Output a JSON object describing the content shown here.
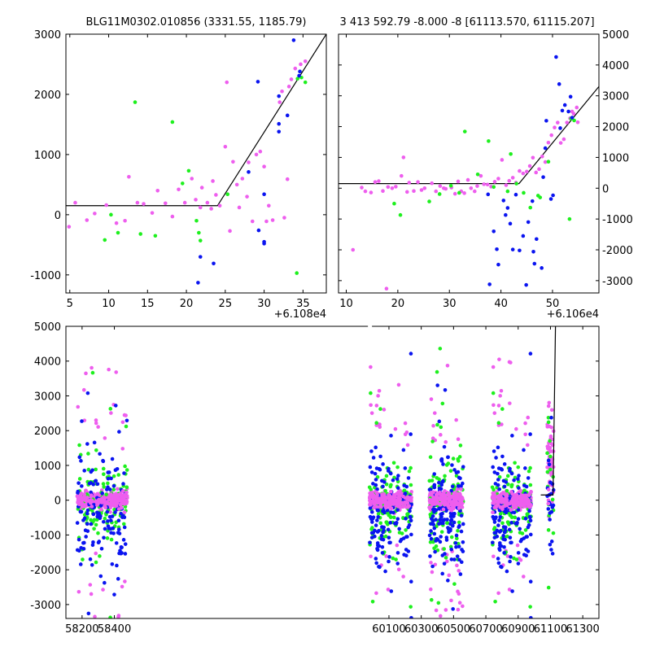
{
  "chart_data": [
    {
      "type": "scatter",
      "title": "BLG11M0302.010856 (3331.55, 1185.79)",
      "xlabel": "",
      "ylabel": "",
      "x_offset_label": "+6.108e4",
      "xlim": [
        4.5,
        38
      ],
      "ylim": [
        -1300,
        3000
      ],
      "xticks": [
        5,
        10,
        15,
        20,
        25,
        30,
        35
      ],
      "yticks": [
        -1000,
        0,
        1000,
        2000,
        3000
      ],
      "y_axis_side": "left",
      "model_line": [
        [
          4.5,
          150
        ],
        [
          24,
          150
        ],
        [
          38,
          3000
        ]
      ],
      "colors": {
        "blue": "#0a14f0",
        "green": "#1ef01e",
        "magenta": "#ee5eee",
        "line": "#000000"
      },
      "series": [
        {
          "name": "blue",
          "points": [
            [
              21.8,
              -700
            ],
            [
              21.5,
              -1130
            ],
            [
              23.5,
              -810
            ],
            [
              30,
              -450
            ],
            [
              29.3,
              -260
            ],
            [
              30,
              -480
            ],
            [
              30,
              340
            ],
            [
              31.9,
              1970
            ],
            [
              31.9,
              1380
            ],
            [
              31.9,
              1510
            ],
            [
              33.8,
              2900
            ],
            [
              34.6,
              2380
            ],
            [
              29.2,
              2210
            ],
            [
              28,
              710
            ],
            [
              33,
              1650
            ],
            [
              34.5,
              2310
            ]
          ]
        },
        {
          "name": "green",
          "points": [
            [
              9.5,
              -420
            ],
            [
              10.3,
              0
            ],
            [
              11.2,
              -300
            ],
            [
              13.4,
              1870
            ],
            [
              14.1,
              -320
            ],
            [
              16,
              -350
            ],
            [
              18.2,
              1540
            ],
            [
              19.5,
              520
            ],
            [
              20.3,
              730
            ],
            [
              21.3,
              -100
            ],
            [
              21.8,
              -430
            ],
            [
              21.6,
              -300
            ],
            [
              34.2,
              -970
            ],
            [
              35.3,
              2200
            ],
            [
              25.3,
              340
            ],
            [
              34.3,
              2260
            ],
            [
              34.8,
              2280
            ]
          ]
        },
        {
          "name": "magenta",
          "points": [
            [
              4.9,
              -200
            ],
            [
              5.7,
              200
            ],
            [
              7.2,
              -90
            ],
            [
              8.2,
              20
            ],
            [
              9.7,
              160
            ],
            [
              11,
              -140
            ],
            [
              12.1,
              -100
            ],
            [
              12.6,
              630
            ],
            [
              13.7,
              200
            ],
            [
              14.5,
              180
            ],
            [
              15.6,
              30
            ],
            [
              16.3,
              400
            ],
            [
              17.3,
              190
            ],
            [
              18.2,
              -30
            ],
            [
              19,
              420
            ],
            [
              19.8,
              200
            ],
            [
              20.7,
              600
            ],
            [
              21.2,
              250
            ],
            [
              21.8,
              120
            ],
            [
              22,
              450
            ],
            [
              22.7,
              200
            ],
            [
              23.2,
              100
            ],
            [
              23.8,
              330
            ],
            [
              24.3,
              150
            ],
            [
              25,
              1130
            ],
            [
              25.2,
              2200
            ],
            [
              26,
              880
            ],
            [
              26.5,
              500
            ],
            [
              27.2,
              600
            ],
            [
              27.8,
              300
            ],
            [
              28,
              870
            ],
            [
              28.5,
              -110
            ],
            [
              29,
              1000
            ],
            [
              29.5,
              1050
            ],
            [
              30,
              800
            ],
            [
              30.6,
              150
            ],
            [
              31.1,
              -90
            ],
            [
              32,
              1870
            ],
            [
              32.3,
              2050
            ],
            [
              32.6,
              -50
            ],
            [
              33.2,
              2130
            ],
            [
              33.5,
              2250
            ],
            [
              34,
              2430
            ],
            [
              34.7,
              2500
            ],
            [
              35.3,
              2550
            ],
            [
              33,
              590
            ],
            [
              26.8,
              120
            ],
            [
              23.4,
              560
            ],
            [
              25.6,
              -270
            ],
            [
              30.3,
              -110
            ]
          ]
        }
      ]
    },
    {
      "type": "scatter",
      "title": "3 413 592.79 -8.000 -8 [61113.570, 61115.207]",
      "xlabel": "",
      "ylabel": "",
      "x_offset_label": "+6.106e4",
      "xlim": [
        8.5,
        59
      ],
      "ylim": [
        -3400,
        5000
      ],
      "xticks": [
        10,
        20,
        30,
        40,
        50
      ],
      "yticks": [
        -3000,
        -2000,
        -1000,
        0,
        1000,
        2000,
        3000,
        4000,
        5000
      ],
      "y_axis_side": "right",
      "model_line": [
        [
          8.5,
          150
        ],
        [
          43.5,
          150
        ],
        [
          59,
          3300
        ]
      ],
      "colors": {
        "blue": "#0a14f0",
        "green": "#1ef01e",
        "magenta": "#ee5eee",
        "line": "#000000"
      },
      "series": [
        {
          "name": "blue",
          "points": [
            [
              37.8,
              -3120
            ],
            [
              38.6,
              -1400
            ],
            [
              39.2,
              -1980
            ],
            [
              39.5,
              -2480
            ],
            [
              40.9,
              -870
            ],
            [
              41.3,
              -640
            ],
            [
              41.8,
              -1150
            ],
            [
              42.3,
              -1990
            ],
            [
              42.9,
              -210
            ],
            [
              43.6,
              -2020
            ],
            [
              44.3,
              -1550
            ],
            [
              44.9,
              -3140
            ],
            [
              45.3,
              -1100
            ],
            [
              46.3,
              -2060
            ],
            [
              46.5,
              -2450
            ],
            [
              46.9,
              -1650
            ],
            [
              47.9,
              -2590
            ],
            [
              48.2,
              360
            ],
            [
              48.6,
              1300
            ],
            [
              48.8,
              2190
            ],
            [
              49.7,
              -350
            ],
            [
              50.1,
              -230
            ],
            [
              50.7,
              4260
            ],
            [
              51.3,
              3380
            ],
            [
              51.5,
              1950
            ],
            [
              51.9,
              2520
            ],
            [
              52.4,
              2700
            ],
            [
              53.1,
              2490
            ],
            [
              53.5,
              2970
            ],
            [
              53.8,
              2290
            ],
            [
              37.5,
              -200
            ],
            [
              40.5,
              -400
            ],
            [
              46.1,
              -420
            ]
          ]
        },
        {
          "name": "green",
          "points": [
            [
              19.3,
              -500
            ],
            [
              20.5,
              -870
            ],
            [
              26.1,
              -430
            ],
            [
              28.1,
              -190
            ],
            [
              30.3,
              80
            ],
            [
              31.9,
              -150
            ],
            [
              33,
              1840
            ],
            [
              35.5,
              450
            ],
            [
              37.6,
              1530
            ],
            [
              38.6,
              40
            ],
            [
              41.3,
              -100
            ],
            [
              41.9,
              1110
            ],
            [
              44.4,
              -150
            ],
            [
              45.7,
              -630
            ],
            [
              47.2,
              -240
            ],
            [
              47.6,
              -300
            ],
            [
              49.2,
              860
            ],
            [
              53.3,
              -1000
            ],
            [
              53.6,
              2260
            ],
            [
              54.2,
              2200
            ],
            [
              43,
              150
            ]
          ]
        },
        {
          "name": "magenta",
          "points": [
            [
              11.3,
              -2000
            ],
            [
              13,
              20
            ],
            [
              13.7,
              -100
            ],
            [
              14.8,
              -140
            ],
            [
              15.6,
              200
            ],
            [
              16.3,
              230
            ],
            [
              17.1,
              -90
            ],
            [
              17.8,
              -3260
            ],
            [
              18.1,
              40
            ],
            [
              18.9,
              0
            ],
            [
              19.6,
              50
            ],
            [
              20.7,
              400
            ],
            [
              21.1,
              1000
            ],
            [
              21.8,
              -120
            ],
            [
              22.2,
              180
            ],
            [
              23.1,
              -90
            ],
            [
              23.9,
              200
            ],
            [
              24.6,
              -60
            ],
            [
              25.2,
              0
            ],
            [
              26.6,
              160
            ],
            [
              27.4,
              -100
            ],
            [
              28.2,
              70
            ],
            [
              28.9,
              0
            ],
            [
              29.3,
              -20
            ],
            [
              30.4,
              20
            ],
            [
              31.1,
              -180
            ],
            [
              31.7,
              220
            ],
            [
              32.3,
              -100
            ],
            [
              32.9,
              -160
            ],
            [
              33.6,
              270
            ],
            [
              34.2,
              0
            ],
            [
              34.9,
              -100
            ],
            [
              35.4,
              70
            ],
            [
              36.1,
              400
            ],
            [
              36.7,
              130
            ],
            [
              37.4,
              120
            ],
            [
              38.1,
              50
            ],
            [
              38.8,
              210
            ],
            [
              39.5,
              310
            ],
            [
              40.2,
              920
            ],
            [
              41,
              100
            ],
            [
              41.6,
              240
            ],
            [
              42.3,
              340
            ],
            [
              42.9,
              180
            ],
            [
              43.6,
              560
            ],
            [
              44.3,
              480
            ],
            [
              45,
              540
            ],
            [
              45.6,
              720
            ],
            [
              46.2,
              990
            ],
            [
              46.8,
              510
            ],
            [
              47.4,
              620
            ],
            [
              48,
              1030
            ],
            [
              48.6,
              850
            ],
            [
              49.2,
              1480
            ],
            [
              49.8,
              1720
            ],
            [
              50.4,
              1970
            ],
            [
              51,
              2130
            ],
            [
              51.6,
              1470
            ],
            [
              52.2,
              1590
            ],
            [
              52.8,
              2130
            ],
            [
              53.4,
              2270
            ],
            [
              54.1,
              2420
            ],
            [
              54.7,
              2620
            ],
            [
              54.9,
              2140
            ],
            [
              53.8,
              2490
            ]
          ]
        }
      ]
    },
    {
      "type": "scatter",
      "title": "",
      "xlabel": "",
      "ylabel": "",
      "xlim": [
        58100,
        61400
      ],
      "ylim": [
        -3400,
        5000
      ],
      "xticks": [
        58200,
        58400,
        60100,
        60300,
        60500,
        60700,
        60900,
        61100,
        61300
      ],
      "yticks": [
        -3000,
        -2000,
        -1000,
        0,
        1000,
        2000,
        3000,
        4000,
        5000
      ],
      "broken_axis": [
        {
          "from": 58480,
          "to": 59980
        }
      ],
      "seasons": [
        [
          58170,
          58480
        ],
        [
          59980,
          60240
        ],
        [
          60350,
          60560
        ],
        [
          60740,
          60980
        ],
        [
          61080,
          61120
        ]
      ],
      "model_line": [
        [
          61040,
          150
        ],
        [
          61116,
          150
        ],
        [
          61131,
          5000
        ]
      ],
      "colors": {
        "blue": "#0a14f0",
        "green": "#1ef01e",
        "magenta": "#ee5eee",
        "line": "#000000"
      }
    }
  ]
}
